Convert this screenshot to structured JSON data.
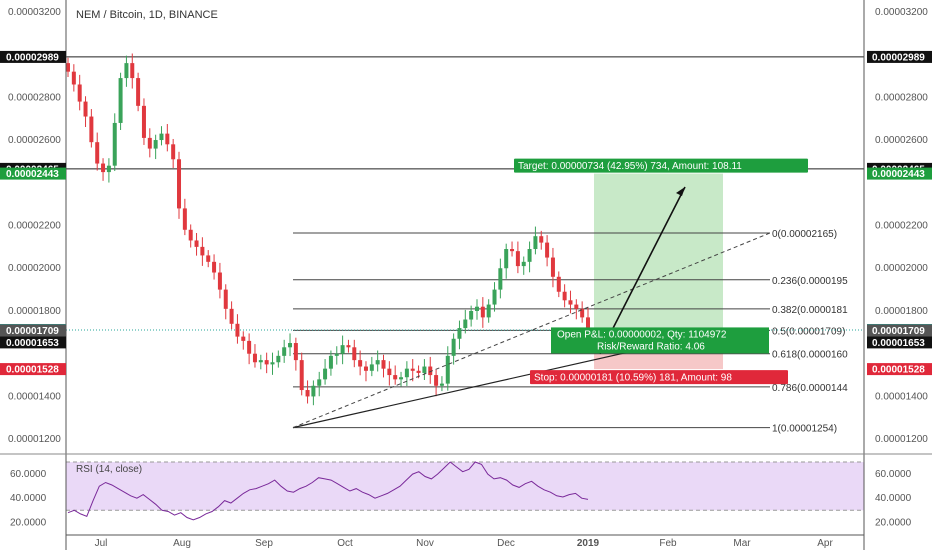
{
  "header": {
    "title": "NEM / Bitcoin, 1D, BINANCE"
  },
  "chart_data": {
    "type": "candlestick",
    "title": "NEM / Bitcoin, 1D, BINANCE",
    "x_ticks": [
      "Jul",
      "Aug",
      "Sep",
      "Oct",
      "Nov",
      "Dec",
      "2019",
      "Feb",
      "Mar",
      "Apr"
    ],
    "y_ticks": [
      "0.00003200",
      "0.00002800",
      "0.00002600",
      "0.00002200",
      "0.00002000",
      "0.00001800",
      "0.00001400",
      "0.00001200"
    ],
    "ylim": [
      1.14e-05,
      3.232e-05
    ],
    "grid": false,
    "price_tags": [
      {
        "value": "0.00002989",
        "kind": "black",
        "y": 2.989e-05
      },
      {
        "value": "0.00002465",
        "kind": "black",
        "y": 2.465e-05
      },
      {
        "value": "0.00002443",
        "kind": "green",
        "y": 2.443e-05
      },
      {
        "value": "0.00001711",
        "kind": "teal",
        "y": 1.711e-05
      },
      {
        "value": "0.00001709",
        "kind": "gray",
        "y": 1.709e-05
      },
      {
        "value": "0.00001653",
        "kind": "black",
        "y": 1.653e-05
      },
      {
        "value": "0.00001528",
        "kind": "red",
        "y": 1.528e-05
      }
    ],
    "fib_levels": [
      {
        "label": "0(0.00002165)",
        "y": 2.165e-05
      },
      {
        "label": "0.236(0.0000195",
        "y": 1.946e-05
      },
      {
        "label": "0.382(0.0000181",
        "y": 1.81e-05
      },
      {
        "label": "0.5(0.00001709)",
        "y": 1.709e-05
      },
      {
        "label": "0.618(0.0000160",
        "y": 1.6e-05
      },
      {
        "label": "0.786(0.0000144",
        "y": 1.445e-05
      },
      {
        "label": "1(0.00001254)",
        "y": 1.254e-05
      }
    ],
    "position": {
      "target_label": "Target: 0.00000734 (42.95%) 734, Amount: 108.11",
      "stop_label": "Stop: 0.00000181 (10.59%) 181, Amount: 98",
      "open_label": "Open P&L: 0.00000002, Qty: 1104972",
      "ratio_label": "Risk/Reward Ratio: 4.06",
      "entry": 1.709e-05,
      "target": 2.443e-05,
      "stop": 1.528e-05
    },
    "horizontal_lines": [
      2.989e-05,
      2.465e-05
    ],
    "candles_close": [
      29.2,
      28.6,
      27.8,
      27.1,
      25.9,
      24.9,
      24.5,
      24.8,
      26.8,
      28.9,
      29.6,
      28.9,
      27.6,
      26.1,
      25.6,
      26.0,
      26.3,
      25.8,
      25.1,
      22.8,
      21.8,
      21.3,
      21.0,
      20.6,
      20.3,
      19.8,
      19.0,
      18.1,
      17.4,
      16.8,
      16.6,
      16.0,
      15.6,
      15.7,
      15.5,
      15.6,
      15.9,
      16.3,
      16.5,
      15.7,
      14.3,
      14.0,
      14.5,
      14.8,
      15.3,
      15.9,
      16.0,
      16.4,
      16.3,
      15.7,
      15.4,
      15.2,
      15.5,
      15.7,
      15.3,
      15.0,
      14.8,
      14.9,
      15.3,
      15.2,
      15.1,
      15.4,
      15.0,
      14.5,
      14.6,
      15.9,
      16.7,
      17.2,
      17.6,
      18.0,
      18.2,
      17.7,
      18.3,
      19.0,
      20.0,
      20.9,
      20.8,
      20.1,
      20.3,
      20.9,
      21.5,
      21.2,
      20.5,
      19.6,
      18.9,
      18.5,
      18.3,
      18.1,
      17.7,
      17.2
    ],
    "rsi": {
      "label": "RSI (14, close)",
      "y_ticks": [
        "60.0000",
        "40.0000",
        "20.0000"
      ],
      "ylim": [
        12,
        75
      ],
      "bands": [
        70,
        30
      ],
      "values": [
        28,
        30,
        27,
        25,
        38,
        50,
        53,
        51,
        48,
        45,
        42,
        40,
        43,
        39,
        35,
        30,
        29,
        26,
        28,
        24,
        22,
        24,
        27,
        29,
        33,
        38,
        36,
        40,
        44,
        47,
        48,
        50,
        52,
        55,
        50,
        46,
        45,
        48,
        50,
        53,
        57,
        56,
        55,
        52,
        49,
        46,
        48,
        45,
        43,
        40,
        42,
        44,
        47,
        50,
        55,
        60,
        62,
        58,
        56,
        60,
        65,
        70,
        66,
        62,
        64,
        70,
        68,
        60,
        56,
        57,
        55,
        51,
        49,
        52,
        54,
        50,
        47,
        45,
        42,
        41,
        43,
        44,
        40,
        39
      ]
    }
  }
}
